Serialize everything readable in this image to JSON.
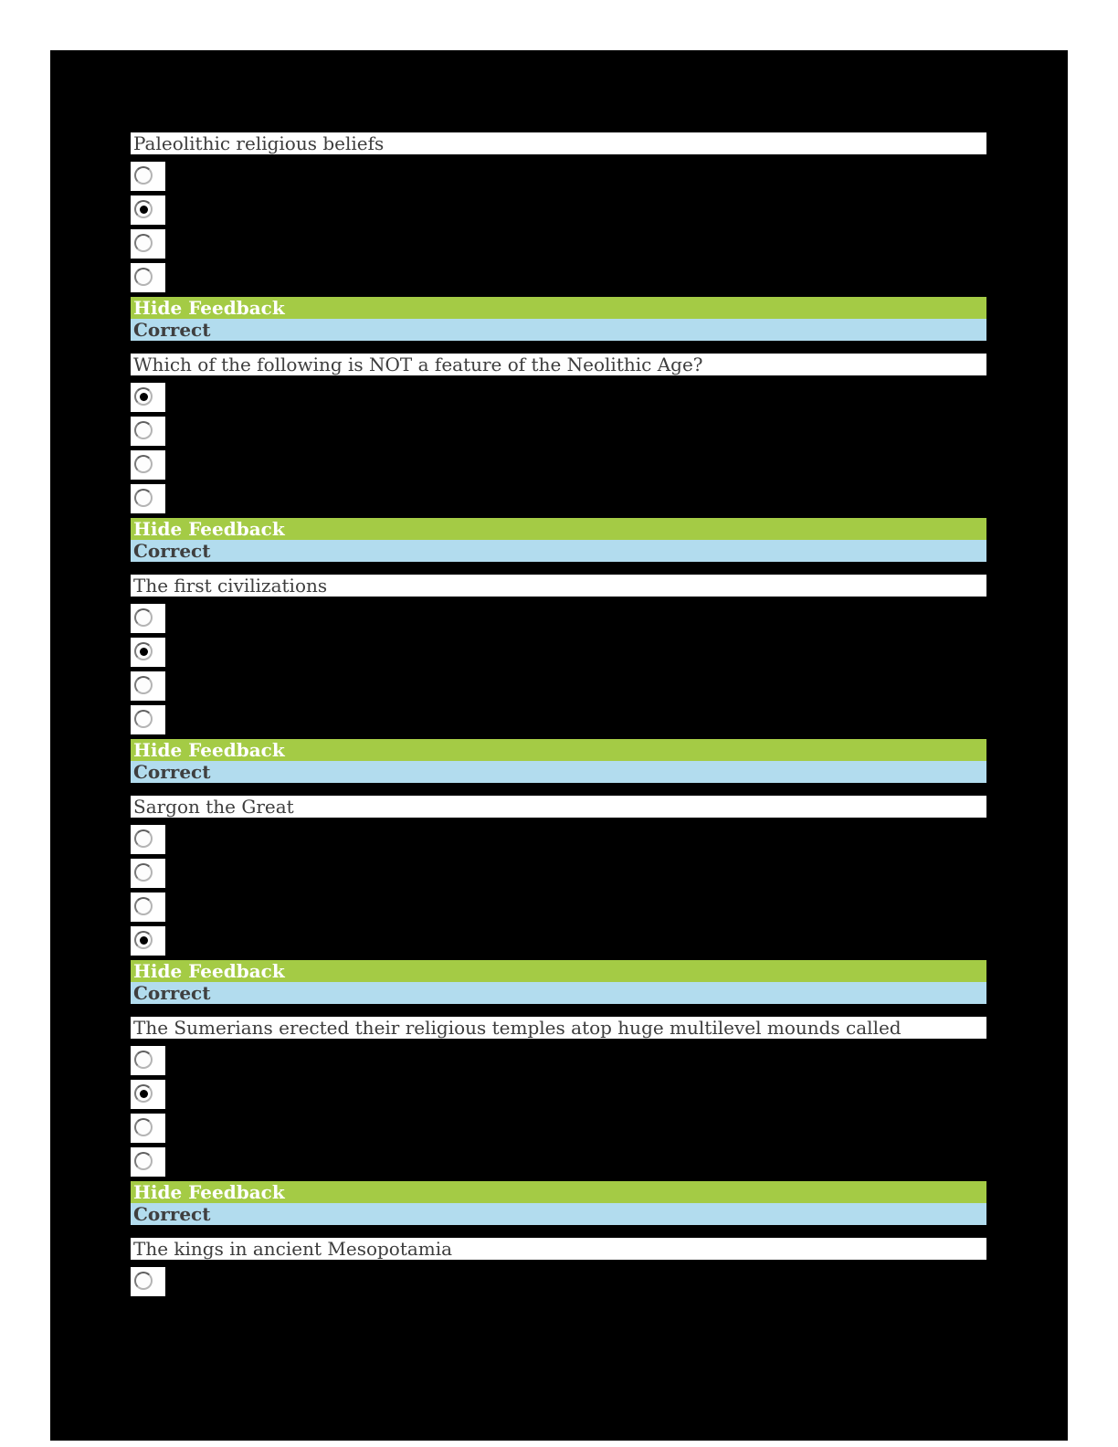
{
  "colors": {
    "feedback_green": "#a4cb45",
    "feedback_blue": "#b2dcee",
    "page_background": "#ffffff",
    "canvas_background": "#000000",
    "question_text": "#3d3d3d",
    "status_text": "#3f3f3f",
    "feedback_link_text": "#ffffff"
  },
  "feedback": {
    "hide_label": "Hide Feedback",
    "status_label": "Correct"
  },
  "questions": [
    {
      "title": "Paleolithic religious beliefs",
      "options": [
        false,
        true,
        false,
        false
      ],
      "feedback_shown": true
    },
    {
      "title": "Which of the following is NOT a feature of the Neolithic Age?",
      "options": [
        true,
        false,
        false,
        false
      ],
      "feedback_shown": true
    },
    {
      "title": "The first civilizations",
      "options": [
        false,
        true,
        false,
        false
      ],
      "feedback_shown": true
    },
    {
      "title": "Sargon the Great",
      "options": [
        false,
        false,
        false,
        true
      ],
      "feedback_shown": true
    },
    {
      "title": "The Sumerians erected their religious temples atop huge multilevel mounds called",
      "options": [
        false,
        true,
        false,
        false
      ],
      "feedback_shown": true
    },
    {
      "title": "The kings in ancient Mesopotamia",
      "options": [
        false
      ],
      "feedback_shown": false
    }
  ]
}
